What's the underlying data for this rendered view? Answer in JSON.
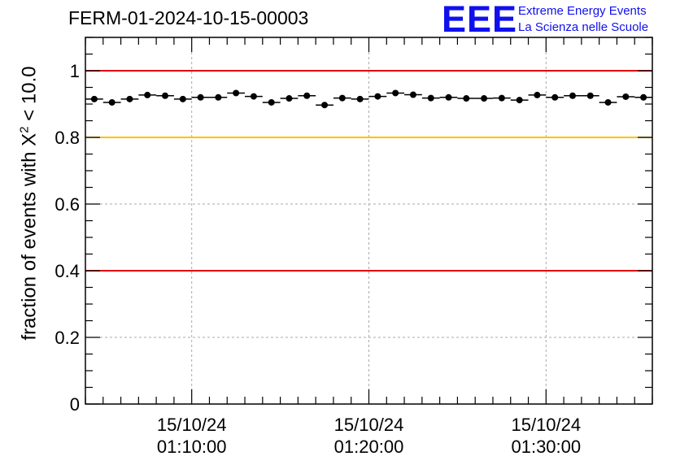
{
  "header": {
    "run_title": "FERM-01-2024-10-15-00003"
  },
  "logo": {
    "mark": "EEE",
    "line1": "Extreme Energy Events",
    "line2": "La Scienza nelle Scuole",
    "color": "#1010ee"
  },
  "chart_data": {
    "type": "scatter",
    "ylabel_prefix": "fraction of events with X",
    "ylabel_sup": "2",
    "ylabel_suffix": " < 10.0",
    "ylim": [
      0,
      1.1
    ],
    "y_ticks": [
      0,
      0.2,
      0.4,
      0.6,
      0.8,
      1
    ],
    "y_tick_labels": [
      "0",
      "0.2",
      "0.4",
      "0.6",
      "0.8",
      "1"
    ],
    "xlim": [
      "01:04:00",
      "01:36:00"
    ],
    "x_ticks": [
      "01:10:00",
      "01:20:00",
      "01:30:00"
    ],
    "x_tick_labels": [
      {
        "date": "15/10/24",
        "time": "01:10:00"
      },
      {
        "date": "15/10/24",
        "time": "01:20:00"
      },
      {
        "date": "15/10/24",
        "time": "01:30:00"
      }
    ],
    "grid": true,
    "reference_lines": [
      {
        "y": 1.0,
        "color": "#e00000"
      },
      {
        "y": 0.8,
        "color": "#ffc000"
      },
      {
        "y": 0.4,
        "color": "#e00000"
      }
    ],
    "bin_width_seconds": 60,
    "x": [
      "01:04:30",
      "01:05:30",
      "01:06:30",
      "01:07:30",
      "01:08:30",
      "01:09:30",
      "01:10:30",
      "01:11:30",
      "01:12:30",
      "01:13:30",
      "01:14:30",
      "01:15:30",
      "01:16:30",
      "01:17:30",
      "01:18:30",
      "01:19:30",
      "01:20:30",
      "01:21:30",
      "01:22:30",
      "01:23:30",
      "01:24:30",
      "01:25:30",
      "01:26:30",
      "01:27:30",
      "01:28:30",
      "01:29:30",
      "01:30:30",
      "01:31:30",
      "01:32:30",
      "01:33:30",
      "01:34:30",
      "01:35:30"
    ],
    "y": [
      0.915,
      0.905,
      0.915,
      0.927,
      0.925,
      0.915,
      0.92,
      0.92,
      0.933,
      0.923,
      0.905,
      0.917,
      0.925,
      0.897,
      0.918,
      0.915,
      0.923,
      0.933,
      0.928,
      0.918,
      0.92,
      0.917,
      0.917,
      0.918,
      0.912,
      0.927,
      0.92,
      0.925,
      0.925,
      0.905,
      0.922,
      0.92
    ],
    "errors": [
      0.004,
      0.004,
      0.004,
      0.004,
      0.004,
      0.004,
      0.004,
      0.004,
      0.004,
      0.004,
      0.004,
      0.004,
      0.004,
      0.004,
      0.004,
      0.004,
      0.004,
      0.004,
      0.004,
      0.004,
      0.004,
      0.004,
      0.004,
      0.004,
      0.004,
      0.004,
      0.004,
      0.004,
      0.004,
      0.004,
      0.004,
      0.004
    ]
  }
}
